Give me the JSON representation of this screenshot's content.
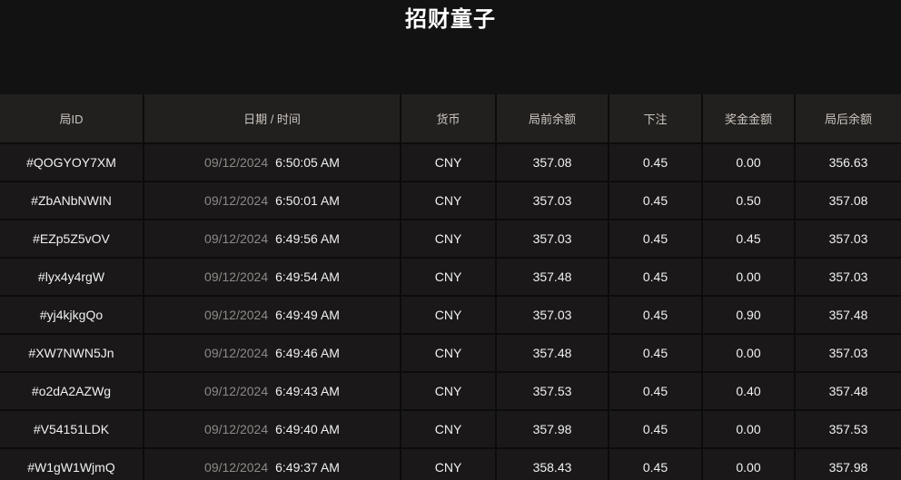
{
  "page": {
    "title": "招财童子"
  },
  "colors": {
    "background": "#131212",
    "header_cell": "#221f1f",
    "row_cell": "#1a1818",
    "separator": "#0d0c0c",
    "header_text": "#ccc7bf",
    "primary_text": "#f1f1f1",
    "date_text": "#8c8a87"
  },
  "table": {
    "columns": [
      {
        "key": "id",
        "label": "局ID"
      },
      {
        "key": "datetime",
        "label": "日期 / 时间"
      },
      {
        "key": "currency",
        "label": "货币"
      },
      {
        "key": "balance_before",
        "label": "局前余额"
      },
      {
        "key": "bet",
        "label": "下注"
      },
      {
        "key": "prize",
        "label": "奖金金额"
      },
      {
        "key": "balance_after",
        "label": "局后余额"
      }
    ],
    "rows": [
      {
        "id": "#QOGYOY7XM",
        "date": "09/12/2024",
        "time": "6:50:05 AM",
        "currency": "CNY",
        "balance_before": "357.08",
        "bet": "0.45",
        "prize": "0.00",
        "balance_after": "356.63"
      },
      {
        "id": "#ZbANbNWIN",
        "date": "09/12/2024",
        "time": "6:50:01 AM",
        "currency": "CNY",
        "balance_before": "357.03",
        "bet": "0.45",
        "prize": "0.50",
        "balance_after": "357.08"
      },
      {
        "id": "#EZp5Z5vOV",
        "date": "09/12/2024",
        "time": "6:49:56 AM",
        "currency": "CNY",
        "balance_before": "357.03",
        "bet": "0.45",
        "prize": "0.45",
        "balance_after": "357.03"
      },
      {
        "id": "#lyx4y4rgW",
        "date": "09/12/2024",
        "time": "6:49:54 AM",
        "currency": "CNY",
        "balance_before": "357.48",
        "bet": "0.45",
        "prize": "0.00",
        "balance_after": "357.03"
      },
      {
        "id": "#yj4kjkgQo",
        "date": "09/12/2024",
        "time": "6:49:49 AM",
        "currency": "CNY",
        "balance_before": "357.03",
        "bet": "0.45",
        "prize": "0.90",
        "balance_after": "357.48"
      },
      {
        "id": "#XW7NWN5Jn",
        "date": "09/12/2024",
        "time": "6:49:46 AM",
        "currency": "CNY",
        "balance_before": "357.48",
        "bet": "0.45",
        "prize": "0.00",
        "balance_after": "357.03"
      },
      {
        "id": "#o2dA2AZWg",
        "date": "09/12/2024",
        "time": "6:49:43 AM",
        "currency": "CNY",
        "balance_before": "357.53",
        "bet": "0.45",
        "prize": "0.40",
        "balance_after": "357.48"
      },
      {
        "id": "#V54151LDK",
        "date": "09/12/2024",
        "time": "6:49:40 AM",
        "currency": "CNY",
        "balance_before": "357.98",
        "bet": "0.45",
        "prize": "0.00",
        "balance_after": "357.53"
      },
      {
        "id": "#W1gW1WjmQ",
        "date": "09/12/2024",
        "time": "6:49:37 AM",
        "currency": "CNY",
        "balance_before": "358.43",
        "bet": "0.45",
        "prize": "0.00",
        "balance_after": "357.98"
      }
    ]
  }
}
